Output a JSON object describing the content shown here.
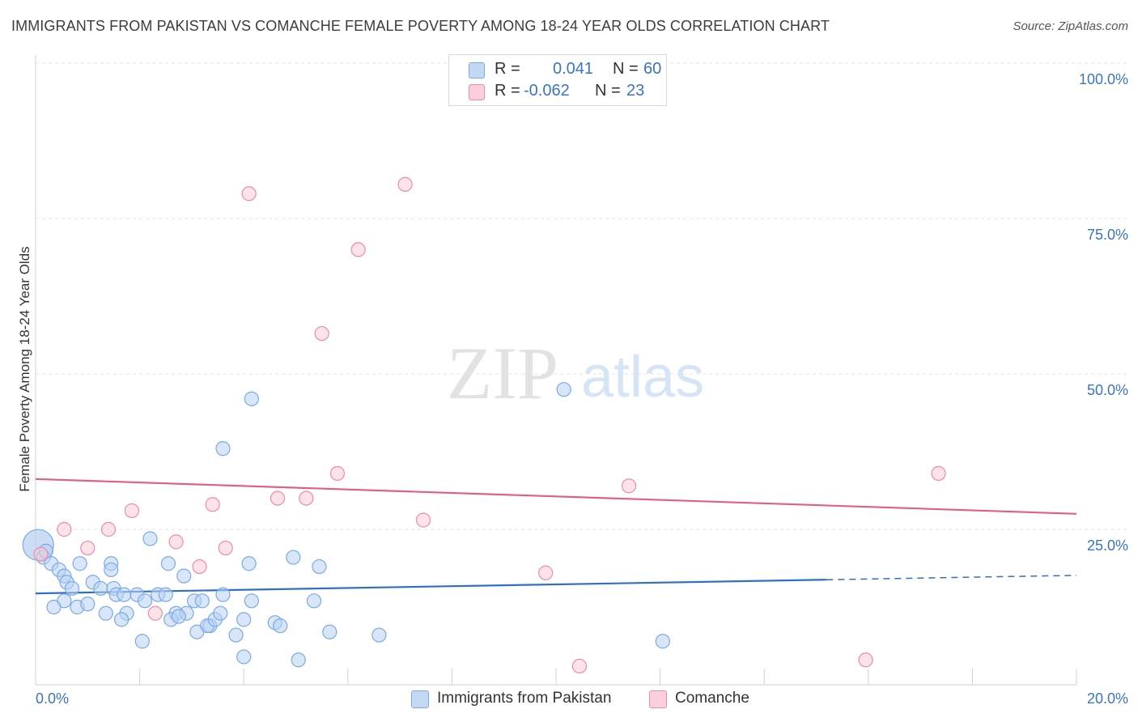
{
  "header": {
    "title": "IMMIGRANTS FROM PAKISTAN VS COMANCHE FEMALE POVERTY AMONG 18-24 YEAR OLDS CORRELATION CHART",
    "source": "Source: ZipAtlas.com"
  },
  "watermark": {
    "zip": "ZIP",
    "atlas": "atlas"
  },
  "legend": {
    "rows": [
      {
        "r_label": "R =",
        "r_value": "0.041",
        "n_label": "N =",
        "n_value": "60",
        "color": "#a9c8f0"
      },
      {
        "r_label": "R =",
        "r_value": "-0.062",
        "n_label": "N =",
        "n_value": "23",
        "color": "#f7b6c8"
      }
    ]
  },
  "bottom_legend": {
    "items": [
      {
        "label": "Immigrants from Pakistan",
        "color": "#a9c8f0"
      },
      {
        "label": "Comanche",
        "color": "#f7b6c8"
      }
    ]
  },
  "chart_data": {
    "type": "scatter",
    "ylabel": "Female Poverty Among 18-24 Year Olds",
    "xlim": [
      0,
      20
    ],
    "ylim": [
      0,
      100
    ],
    "x_tick_labels": [
      "0.0%",
      "20.0%"
    ],
    "y_tick_labels": [
      {
        "value": 100,
        "label": "100.0%"
      },
      {
        "value": 75,
        "label": "75.0%"
      },
      {
        "value": 50,
        "label": "50.0%"
      },
      {
        "value": 25,
        "label": "25.0%"
      }
    ],
    "grid": true,
    "series": [
      {
        "name": "Immigrants from Pakistan",
        "color": "#7aaae4",
        "fill": "#b8d2f2",
        "trend": {
          "x0": 0,
          "y0": 14.7,
          "x1": 15.2,
          "y1": 16.9,
          "dash_x1": 20,
          "dash_y1": 17.6,
          "color": "#2f6fc4"
        },
        "points": [
          {
            "x": 0.05,
            "y": 22.5,
            "big": true
          },
          {
            "x": 0.15,
            "y": 20.5
          },
          {
            "x": 0.3,
            "y": 19.5
          },
          {
            "x": 0.45,
            "y": 18.5
          },
          {
            "x": 0.55,
            "y": 17.5
          },
          {
            "x": 0.2,
            "y": 21.5
          },
          {
            "x": 0.85,
            "y": 19.5
          },
          {
            "x": 0.6,
            "y": 16.5
          },
          {
            "x": 1.1,
            "y": 16.5
          },
          {
            "x": 0.7,
            "y": 15.5
          },
          {
            "x": 0.55,
            "y": 13.5
          },
          {
            "x": 0.35,
            "y": 12.5
          },
          {
            "x": 0.8,
            "y": 12.5
          },
          {
            "x": 1.25,
            "y": 15.5
          },
          {
            "x": 1.45,
            "y": 19.5
          },
          {
            "x": 1.5,
            "y": 15.5
          },
          {
            "x": 1.45,
            "y": 18.5
          },
          {
            "x": 1.55,
            "y": 14.5
          },
          {
            "x": 1.7,
            "y": 14.5
          },
          {
            "x": 1.75,
            "y": 11.5
          },
          {
            "x": 1.65,
            "y": 10.5
          },
          {
            "x": 1.35,
            "y": 11.5
          },
          {
            "x": 1.95,
            "y": 14.5
          },
          {
            "x": 2.1,
            "y": 13.5
          },
          {
            "x": 2.35,
            "y": 14.5
          },
          {
            "x": 2.5,
            "y": 14.5
          },
          {
            "x": 2.55,
            "y": 19.5
          },
          {
            "x": 2.2,
            "y": 23.5
          },
          {
            "x": 2.85,
            "y": 17.5
          },
          {
            "x": 2.7,
            "y": 11.5
          },
          {
            "x": 2.6,
            "y": 10.5
          },
          {
            "x": 2.9,
            "y": 11.5
          },
          {
            "x": 3.05,
            "y": 13.5
          },
          {
            "x": 3.2,
            "y": 13.5
          },
          {
            "x": 3.1,
            "y": 8.5
          },
          {
            "x": 3.35,
            "y": 9.5
          },
          {
            "x": 3.3,
            "y": 9.5
          },
          {
            "x": 3.45,
            "y": 10.5
          },
          {
            "x": 3.55,
            "y": 11.5
          },
          {
            "x": 3.6,
            "y": 14.5
          },
          {
            "x": 3.85,
            "y": 8.0
          },
          {
            "x": 4.0,
            "y": 10.5
          },
          {
            "x": 4.1,
            "y": 19.5
          },
          {
            "x": 4.0,
            "y": 4.5
          },
          {
            "x": 2.05,
            "y": 7.0
          },
          {
            "x": 4.15,
            "y": 13.5
          },
          {
            "x": 4.6,
            "y": 10.0
          },
          {
            "x": 4.7,
            "y": 9.5
          },
          {
            "x": 4.95,
            "y": 20.5
          },
          {
            "x": 5.05,
            "y": 4.0
          },
          {
            "x": 5.35,
            "y": 13.5
          },
          {
            "x": 5.45,
            "y": 19.0
          },
          {
            "x": 5.65,
            "y": 8.5
          },
          {
            "x": 6.6,
            "y": 8.0
          },
          {
            "x": 3.6,
            "y": 38.0
          },
          {
            "x": 4.15,
            "y": 46.0
          },
          {
            "x": 10.15,
            "y": 47.5
          },
          {
            "x": 12.05,
            "y": 7.0
          },
          {
            "x": 1.0,
            "y": 13.0
          },
          {
            "x": 2.75,
            "y": 11.0
          }
        ]
      },
      {
        "name": "Comanche",
        "color": "#ef8aa8",
        "fill": "#f9ccd8",
        "trend": {
          "x0": 0,
          "y0": 33.1,
          "x1": 20,
          "y1": 27.5,
          "color": "#e05e88"
        },
        "points": [
          {
            "x": 0.55,
            "y": 25.0
          },
          {
            "x": 1.0,
            "y": 22.0
          },
          {
            "x": 1.4,
            "y": 25.0
          },
          {
            "x": 1.85,
            "y": 28.0
          },
          {
            "x": 2.3,
            "y": 11.5
          },
          {
            "x": 2.7,
            "y": 23.0
          },
          {
            "x": 3.15,
            "y": 19.0
          },
          {
            "x": 3.4,
            "y": 29.0
          },
          {
            "x": 3.65,
            "y": 22.0
          },
          {
            "x": 4.65,
            "y": 30.0
          },
          {
            "x": 5.2,
            "y": 30.0
          },
          {
            "x": 5.8,
            "y": 34.0
          },
          {
            "x": 7.45,
            "y": 26.5
          },
          {
            "x": 9.8,
            "y": 18.0
          },
          {
            "x": 11.4,
            "y": 32.0
          },
          {
            "x": 10.45,
            "y": 3.0
          },
          {
            "x": 15.95,
            "y": 4.0
          },
          {
            "x": 17.35,
            "y": 34.0
          },
          {
            "x": 4.1,
            "y": 79.0
          },
          {
            "x": 7.1,
            "y": 80.5
          },
          {
            "x": 6.2,
            "y": 70.0
          },
          {
            "x": 5.5,
            "y": 56.5
          },
          {
            "x": 0.1,
            "y": 21.0
          }
        ]
      }
    ]
  }
}
